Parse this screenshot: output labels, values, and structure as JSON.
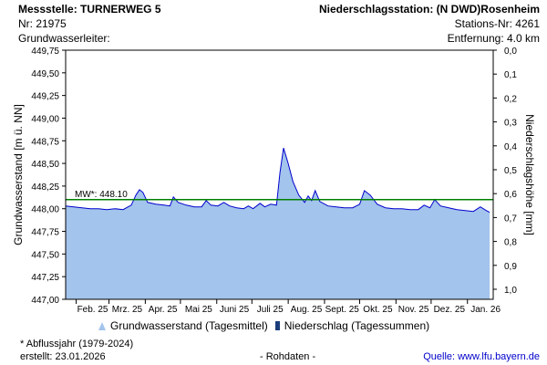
{
  "header": {
    "station_label": "Messstelle: TURNERWEG 5",
    "nr": "Nr: 21975",
    "aquifer": "Grundwasserleiter:",
    "precip_station": "Niederschlagsstation: (N DWD)Rosenheim",
    "station_nr": "Stations-Nr: 4261",
    "distance": "Entfernung: 4.0 km"
  },
  "footer": {
    "note": "* Abflussjahr (1979-2024)",
    "created": "erstellt:  23.01.2026",
    "rawdata": "- Rohdaten -",
    "source": "Quelle: www.lfu.bayern.de"
  },
  "legend": {
    "groundwater": "Grundwasserstand (Tagesmittel)",
    "precip": "Niederschlag (Tagessummen)"
  },
  "chart_data": {
    "type": "area",
    "ylabel_left": "Grundwasserstand [m ü. NN]",
    "ylabel_right": "Niederschlagshöhe [mm]",
    "ylim_left": [
      447.0,
      449.75
    ],
    "yticks_left": [
      "449,75",
      "449,50",
      "449,25",
      "449,00",
      "448,75",
      "448,50",
      "448,25",
      "448,00",
      "447,75",
      "447,50",
      "447,25",
      "447,00"
    ],
    "ylim_right": [
      0.0,
      1.0
    ],
    "yticks_right": [
      "0,0",
      "0,1",
      "0,2",
      "0,3",
      "0,4",
      "0,5",
      "0,6",
      "0,7",
      "0,8",
      "0,9",
      "1,0"
    ],
    "xticks": [
      "Feb. 25",
      "Mrz. 25",
      "Apr. 25",
      "Mai 25",
      "Juni 25",
      "Juli 25",
      "Aug. 25",
      "Sept. 25",
      "Okt. 25",
      "Nov. 25",
      "Dez. 25",
      "Jan. 26"
    ],
    "x_range": [
      "2025-01-23",
      "2026-01-23"
    ],
    "mean_line": {
      "label": "MW*: 448.10",
      "value": 448.1,
      "color": "#008000"
    },
    "series": [
      {
        "color": "#0000cc",
        "fill": "#a3c4ec",
        "points": [
          [
            "2025-01-23",
            448.03
          ],
          [
            "2025-01-30",
            448.02
          ],
          [
            "2025-02-06",
            448.01
          ],
          [
            "2025-02-13",
            448.0
          ],
          [
            "2025-02-20",
            448.0
          ],
          [
            "2025-02-27",
            447.99
          ],
          [
            "2025-03-06",
            448.0
          ],
          [
            "2025-03-13",
            447.99
          ],
          [
            "2025-03-20",
            448.04
          ],
          [
            "2025-03-24",
            448.15
          ],
          [
            "2025-03-27",
            448.21
          ],
          [
            "2025-03-30",
            448.18
          ],
          [
            "2025-04-03",
            448.07
          ],
          [
            "2025-04-10",
            448.05
          ],
          [
            "2025-04-17",
            448.04
          ],
          [
            "2025-04-22",
            448.03
          ],
          [
            "2025-04-25",
            448.13
          ],
          [
            "2025-04-29",
            448.07
          ],
          [
            "2025-05-06",
            448.04
          ],
          [
            "2025-05-13",
            448.02
          ],
          [
            "2025-05-19",
            448.02
          ],
          [
            "2025-05-23",
            448.09
          ],
          [
            "2025-05-27",
            448.04
          ],
          [
            "2025-06-02",
            448.03
          ],
          [
            "2025-06-07",
            448.07
          ],
          [
            "2025-06-12",
            448.03
          ],
          [
            "2025-06-18",
            448.01
          ],
          [
            "2025-06-24",
            448.0
          ],
          [
            "2025-06-28",
            448.03
          ],
          [
            "2025-07-02",
            448.0
          ],
          [
            "2025-07-08",
            448.06
          ],
          [
            "2025-07-12",
            448.02
          ],
          [
            "2025-07-17",
            448.05
          ],
          [
            "2025-07-22",
            448.04
          ],
          [
            "2025-07-25",
            448.4
          ],
          [
            "2025-07-28",
            448.67
          ],
          [
            "2025-08-01",
            448.5
          ],
          [
            "2025-08-05",
            448.3
          ],
          [
            "2025-08-10",
            448.15
          ],
          [
            "2025-08-15",
            448.07
          ],
          [
            "2025-08-18",
            448.14
          ],
          [
            "2025-08-21",
            448.09
          ],
          [
            "2025-08-24",
            448.2
          ],
          [
            "2025-08-28",
            448.08
          ],
          [
            "2025-09-04",
            448.03
          ],
          [
            "2025-09-11",
            448.02
          ],
          [
            "2025-09-18",
            448.01
          ],
          [
            "2025-09-25",
            448.01
          ],
          [
            "2025-10-01",
            448.05
          ],
          [
            "2025-10-05",
            448.2
          ],
          [
            "2025-10-10",
            448.15
          ],
          [
            "2025-10-16",
            448.05
          ],
          [
            "2025-10-23",
            448.01
          ],
          [
            "2025-10-30",
            448.0
          ],
          [
            "2025-11-06",
            448.0
          ],
          [
            "2025-11-13",
            447.99
          ],
          [
            "2025-11-20",
            447.99
          ],
          [
            "2025-11-25",
            448.04
          ],
          [
            "2025-11-30",
            448.01
          ],
          [
            "2025-12-04",
            448.1
          ],
          [
            "2025-12-09",
            448.03
          ],
          [
            "2025-12-16",
            448.01
          ],
          [
            "2025-12-23",
            447.99
          ],
          [
            "2025-12-30",
            447.98
          ],
          [
            "2026-01-06",
            447.97
          ],
          [
            "2026-01-12",
            448.02
          ],
          [
            "2026-01-17",
            447.98
          ],
          [
            "2026-01-20",
            447.96
          ]
        ]
      }
    ]
  }
}
